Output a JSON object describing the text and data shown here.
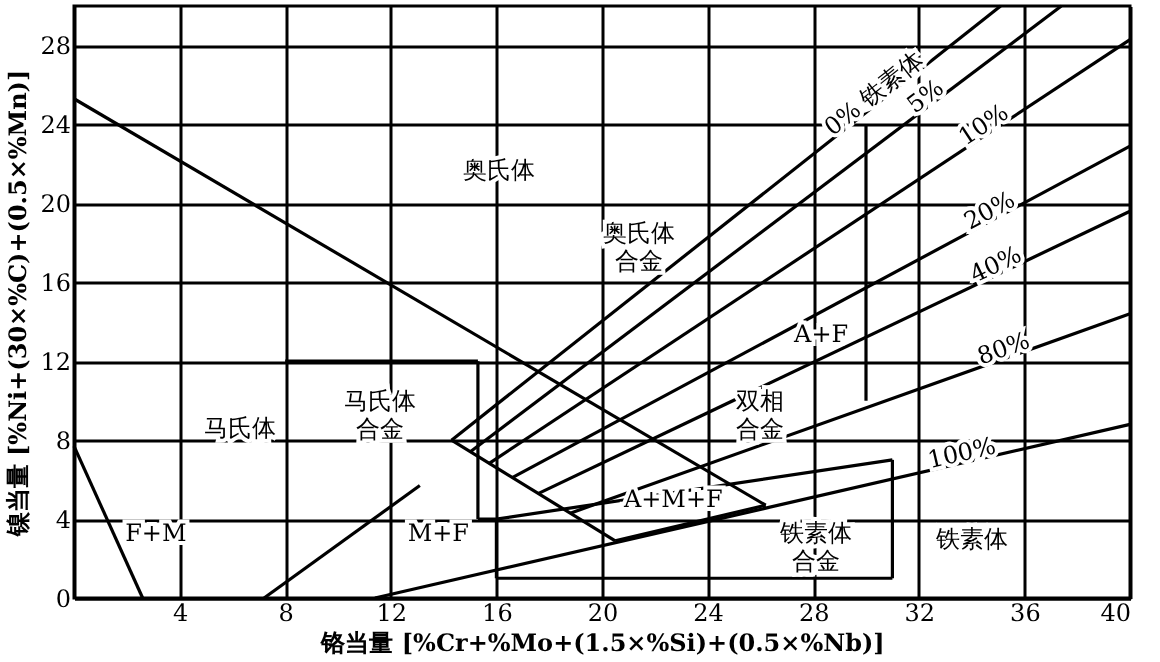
{
  "chart_data": {
    "type": "line",
    "xlabel": "铬当量 [%Cr+%Mo+(1.5×%Si)+(0.5×%Nb)]",
    "ylabel": "镍当量 [%Ni+(30×%C)+(0.5×%Mn)]",
    "xlim": [
      0,
      40
    ],
    "ylim": [
      0,
      30
    ],
    "xticks": [
      4,
      8,
      12,
      16,
      20,
      24,
      28,
      32,
      36,
      40
    ],
    "yticks": [
      0,
      4,
      8,
      12,
      16,
      20,
      24,
      28
    ],
    "grid": true,
    "legend": false,
    "line_style": "solid",
    "marker": "none",
    "series": [
      {
        "color": "#000000",
        "x": [
          0,
          26.2
        ],
        "values": [
          25.3,
          4.7
        ]
      },
      {
        "color": "#000000",
        "x": [
          20.5,
          26.2
        ],
        "values": [
          2.9,
          4.7
        ]
      },
      {
        "color": "#000000",
        "x": [
          0,
          2.6
        ],
        "values": [
          7.7,
          0
        ]
      },
      {
        "color": "#000000",
        "x": [
          7.2,
          13.1
        ],
        "values": [
          0,
          5.7
        ]
      },
      {
        "color": "#000000",
        "x": [
          8,
          15.3
        ],
        "values": [
          12,
          12
        ]
      },
      {
        "color": "#000000",
        "x": [
          15.3,
          15.3
        ],
        "values": [
          12,
          4
        ]
      },
      {
        "color": "#000000",
        "x": [
          15.3,
          16,
          31
        ],
        "values": [
          4,
          4,
          7
        ]
      },
      {
        "color": "#000000",
        "x": [
          16,
          16
        ],
        "values": [
          4,
          1
        ]
      },
      {
        "color": "#000000",
        "x": [
          16,
          31
        ],
        "values": [
          1,
          1
        ]
      },
      {
        "color": "#000000",
        "x": [
          31,
          31
        ],
        "values": [
          7,
          1
        ]
      },
      {
        "color": "#000000",
        "x": [
          30,
          30
        ],
        "values": [
          24,
          10
        ]
      },
      {
        "color": "#000000",
        "x": [
          14.3,
          20.5
        ],
        "values": [
          8,
          2.9
        ]
      },
      {
        "name": "0% 铁素体",
        "color": "#000000",
        "x": [
          14.3,
          35.1
        ],
        "values": [
          8,
          30
        ]
      },
      {
        "name": "5%",
        "color": "#000000",
        "x": [
          15,
          37.4
        ],
        "values": [
          7.4,
          30
        ]
      },
      {
        "name": "10%",
        "color": "#000000",
        "x": [
          15.7,
          40
        ],
        "values": [
          6.8,
          28.3
        ]
      },
      {
        "name": "20%",
        "color": "#000000",
        "x": [
          16.6,
          40
        ],
        "values": [
          6.1,
          22.9
        ]
      },
      {
        "name": "40%",
        "color": "#000000",
        "x": [
          17.6,
          40
        ],
        "values": [
          5.3,
          19.6
        ]
      },
      {
        "name": "80%",
        "color": "#000000",
        "x": [
          18.8,
          40
        ],
        "values": [
          4.3,
          14.4
        ]
      },
      {
        "name": "100%",
        "color": "#000000",
        "x": [
          11.4,
          40
        ],
        "values": [
          0,
          8.8
        ]
      }
    ],
    "annotations": [
      "奥氏体",
      "奥氏体合金",
      "马氏体",
      "马氏体合金",
      "F+M",
      "M+F",
      "A+M+F",
      "铁素体合金",
      "铁素体",
      "双相合金",
      "A+F"
    ]
  }
}
